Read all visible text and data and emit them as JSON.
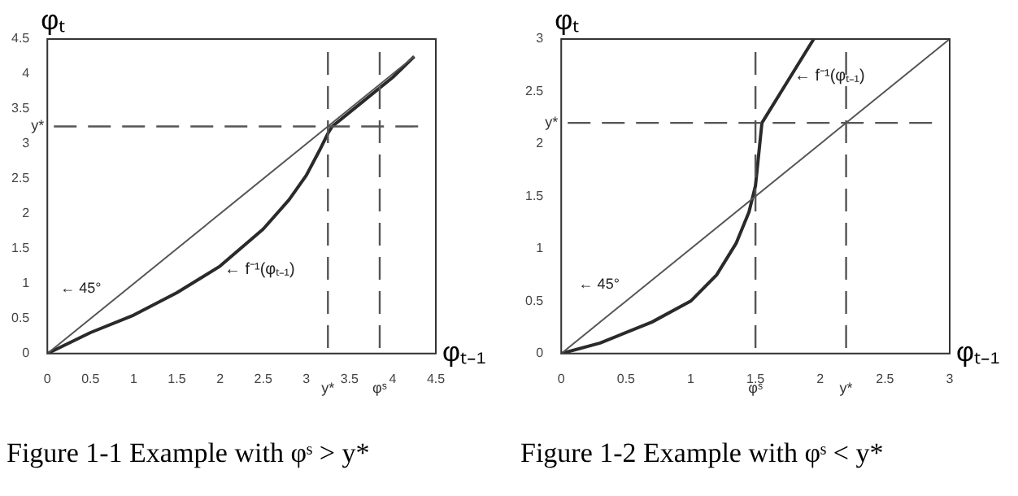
{
  "chart_data": [
    {
      "type": "line",
      "xlabel": "φₜ₋₁",
      "ylabel": "φₜ",
      "xlim": [
        0,
        4.5
      ],
      "ylim": [
        0,
        4.5
      ],
      "xticks": [
        0,
        0.5,
        1,
        1.5,
        2,
        2.5,
        3,
        3.5,
        4,
        4.5
      ],
      "yticks": [
        0,
        0.5,
        1,
        1.5,
        2,
        2.5,
        3,
        3.5,
        4,
        4.5
      ],
      "grid": false,
      "legend": false,
      "marker": "none",
      "series": [
        {
          "color": "#555555",
          "x": [
            0,
            4.25
          ],
          "values": [
            0,
            4.25
          ]
        },
        {
          "color": "#2a2a2a",
          "x": [
            0,
            0.5,
            1,
            1.5,
            2,
            2.5,
            2.8,
            3,
            3.15,
            3.25,
            3.3,
            3.6,
            4,
            4.25
          ],
          "values": [
            0,
            0.3,
            0.55,
            0.87,
            1.25,
            1.78,
            2.2,
            2.55,
            2.9,
            3.15,
            3.25,
            3.55,
            3.95,
            4.25
          ]
        }
      ],
      "ref_lines": [
        {
          "axis": "y",
          "value": 3.25,
          "label": "y*",
          "color": "#555555",
          "line_style": "dashed"
        },
        {
          "axis": "x",
          "value": 3.25,
          "label": "y*",
          "color": "#555555",
          "line_style": "dashed"
        },
        {
          "axis": "x",
          "value": 3.85,
          "label": "φˢ",
          "color": "#555555",
          "line_style": "dashed"
        }
      ],
      "annotations": [
        {
          "text": "← 45°",
          "x": 0.7,
          "y": 0.7
        },
        {
          "text": "← f⁻¹(φₜ₋₁)",
          "x": 2.05,
          "y": 1.2
        },
        "Figure 1-1 Example with φˢ > y*"
      ]
    },
    {
      "type": "line",
      "xlabel": "φₜ₋₁",
      "ylabel": "φₜ",
      "xlim": [
        0,
        3
      ],
      "ylim": [
        0,
        3
      ],
      "xticks": [
        0,
        0.5,
        1,
        1.5,
        2,
        2.5,
        3
      ],
      "yticks": [
        0,
        0.5,
        1,
        1.5,
        2,
        2.5,
        3
      ],
      "grid": false,
      "legend": false,
      "marker": "none",
      "series": [
        {
          "color": "#555555",
          "x": [
            0,
            3
          ],
          "values": [
            0,
            3
          ]
        },
        {
          "color": "#2a2a2a",
          "x": [
            0,
            0.3,
            0.7,
            1,
            1.2,
            1.35,
            1.45,
            1.5,
            1.55,
            1.75,
            1.95
          ],
          "values": [
            0,
            0.1,
            0.3,
            0.5,
            0.75,
            1.05,
            1.35,
            1.6,
            2.2,
            2.6,
            3
          ]
        }
      ],
      "ref_lines": [
        {
          "axis": "y",
          "value": 2.2,
          "label": "y*",
          "color": "#555555",
          "line_style": "dashed"
        },
        {
          "axis": "x",
          "value": 2.2,
          "label": "y*",
          "color": "#555555",
          "line_style": "dashed"
        },
        {
          "axis": "x",
          "value": 1.5,
          "label": "φˢ",
          "color": "#555555",
          "line_style": "dashed"
        }
      ],
      "annotations": [
        {
          "text": "← 45°",
          "x": 0.5,
          "y": 0.5
        },
        {
          "text": "← f⁻¹(φₜ₋₁)",
          "x": 1.8,
          "y": 2.65
        },
        "Figure 1-2 Example with φˢ < y*"
      ]
    }
  ]
}
